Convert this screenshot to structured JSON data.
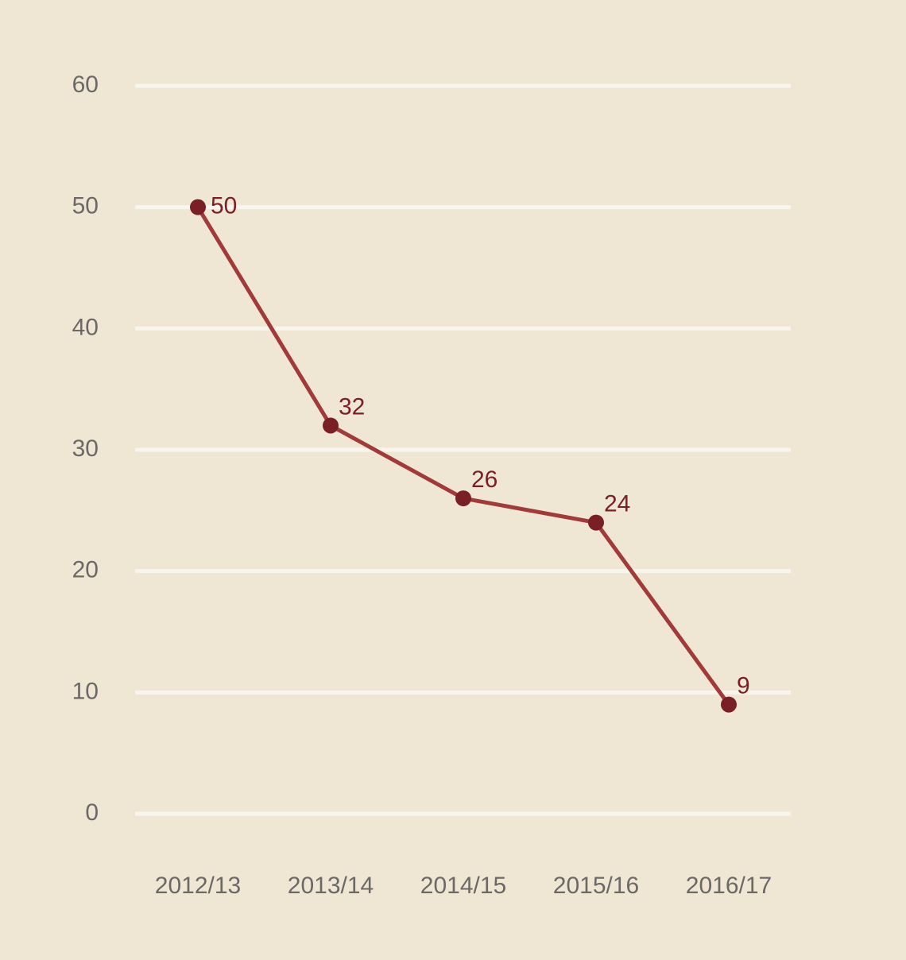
{
  "chart_data": {
    "type": "line",
    "categories": [
      "2012/13",
      "2013/14",
      "2014/15",
      "2015/16",
      "2016/17"
    ],
    "values": [
      50,
      32,
      26,
      24,
      9
    ],
    "color": "#a33a3a",
    "marker_color": "#7a1f24",
    "ylim": [
      0,
      60
    ],
    "yticks": [
      0,
      10,
      20,
      30,
      40,
      50,
      60
    ],
    "grid": true
  }
}
